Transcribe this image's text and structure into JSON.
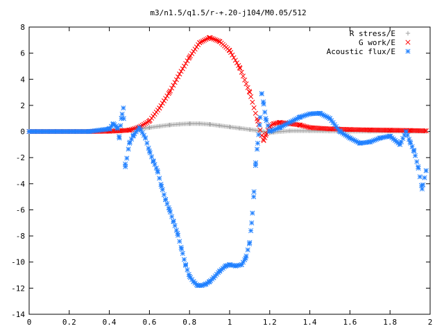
{
  "chart_data": {
    "type": "scatter",
    "title": "m3/n1.5/q1.5/r-+.20-j104/M0.05/512",
    "xlabel": "",
    "ylabel": "",
    "xlim": [
      0,
      2
    ],
    "ylim": [
      -14,
      8
    ],
    "x_ticks": [
      "0",
      "0.2",
      "0.4",
      "0.6",
      "0.8",
      "1",
      "1.2",
      "1.4",
      "1.6",
      "1.8",
      "2"
    ],
    "y_ticks": [
      "8",
      "6",
      "4",
      "2",
      "0",
      "-2",
      "-4",
      "-6",
      "-8",
      "-10",
      "-12",
      "-14"
    ],
    "grid": false,
    "legend_position": "top-right",
    "series": [
      {
        "name": "R stress/E",
        "marker": "plus",
        "color": "#a0a0a0",
        "points": [
          [
            0.0,
            0
          ],
          [
            0.3,
            0
          ],
          [
            0.4,
            0.02
          ],
          [
            0.45,
            0.05
          ],
          [
            0.5,
            0.12
          ],
          [
            0.55,
            0.2
          ],
          [
            0.6,
            0.3
          ],
          [
            0.65,
            0.4
          ],
          [
            0.7,
            0.5
          ],
          [
            0.75,
            0.56
          ],
          [
            0.8,
            0.6
          ],
          [
            0.85,
            0.6
          ],
          [
            0.9,
            0.55
          ],
          [
            0.95,
            0.45
          ],
          [
            1.0,
            0.35
          ],
          [
            1.05,
            0.25
          ],
          [
            1.1,
            0.15
          ],
          [
            1.15,
            0.05
          ],
          [
            1.2,
            -0.1
          ],
          [
            1.22,
            -0.05
          ],
          [
            1.3,
            0.05
          ],
          [
            1.4,
            0.05
          ],
          [
            1.5,
            0.03
          ],
          [
            1.6,
            0.02
          ],
          [
            1.7,
            0.02
          ],
          [
            1.8,
            0.02
          ],
          [
            1.9,
            0.02
          ],
          [
            1.98,
            0.02
          ]
        ]
      },
      {
        "name": "G work/E",
        "marker": "cross",
        "color": "#ff0000",
        "points": [
          [
            0.0,
            0
          ],
          [
            0.3,
            0
          ],
          [
            0.4,
            0.02
          ],
          [
            0.45,
            0.05
          ],
          [
            0.5,
            0.1
          ],
          [
            0.55,
            0.35
          ],
          [
            0.6,
            0.8
          ],
          [
            0.65,
            1.8
          ],
          [
            0.7,
            3.0
          ],
          [
            0.75,
            4.4
          ],
          [
            0.8,
            5.7
          ],
          [
            0.85,
            6.8
          ],
          [
            0.9,
            7.2
          ],
          [
            0.95,
            6.9
          ],
          [
            1.0,
            6.2
          ],
          [
            1.05,
            4.9
          ],
          [
            1.1,
            3.0
          ],
          [
            1.14,
            0.8
          ],
          [
            1.16,
            -0.3
          ],
          [
            1.17,
            -0.7
          ],
          [
            1.18,
            -0.3
          ],
          [
            1.2,
            0.4
          ],
          [
            1.22,
            0.6
          ],
          [
            1.25,
            0.7
          ],
          [
            1.3,
            0.6
          ],
          [
            1.35,
            0.5
          ],
          [
            1.4,
            0.3
          ],
          [
            1.5,
            0.2
          ],
          [
            1.6,
            0.15
          ],
          [
            1.7,
            0.12
          ],
          [
            1.8,
            0.1
          ],
          [
            1.9,
            0.08
          ],
          [
            1.98,
            0.05
          ]
        ]
      },
      {
        "name": "Acoustic flux/E",
        "marker": "star",
        "color": "#2080ff",
        "points": [
          [
            0.0,
            0
          ],
          [
            0.3,
            0
          ],
          [
            0.4,
            0.2
          ],
          [
            0.42,
            0.6
          ],
          [
            0.44,
            0.3
          ],
          [
            0.45,
            -0.5
          ],
          [
            0.46,
            1.0
          ],
          [
            0.47,
            1.8
          ],
          [
            0.48,
            -2.7
          ],
          [
            0.5,
            -0.9
          ],
          [
            0.52,
            -0.3
          ],
          [
            0.55,
            0.3
          ],
          [
            0.58,
            -0.5
          ],
          [
            0.6,
            -1.5
          ],
          [
            0.62,
            -2.3
          ],
          [
            0.64,
            -3.0
          ],
          [
            0.66,
            -4.2
          ],
          [
            0.68,
            -5.2
          ],
          [
            0.7,
            -6.0
          ],
          [
            0.72,
            -6.9
          ],
          [
            0.74,
            -7.8
          ],
          [
            0.76,
            -9.0
          ],
          [
            0.78,
            -10.2
          ],
          [
            0.8,
            -11.1
          ],
          [
            0.82,
            -11.5
          ],
          [
            0.84,
            -11.8
          ],
          [
            0.86,
            -11.8
          ],
          [
            0.88,
            -11.7
          ],
          [
            0.9,
            -11.5
          ],
          [
            0.92,
            -11.2
          ],
          [
            0.95,
            -10.7
          ],
          [
            0.98,
            -10.3
          ],
          [
            1.0,
            -10.2
          ],
          [
            1.03,
            -10.3
          ],
          [
            1.06,
            -10.2
          ],
          [
            1.08,
            -9.7
          ],
          [
            1.1,
            -8.5
          ],
          [
            1.11,
            -7.0
          ],
          [
            1.12,
            -5.0
          ],
          [
            1.13,
            -2.4
          ],
          [
            1.14,
            -0.9
          ],
          [
            1.15,
            0.5
          ],
          [
            1.16,
            2.9
          ],
          [
            1.17,
            2.1
          ],
          [
            1.18,
            1.0
          ],
          [
            1.2,
            0.0
          ],
          [
            1.25,
            0.3
          ],
          [
            1.3,
            0.7
          ],
          [
            1.35,
            1.1
          ],
          [
            1.4,
            1.35
          ],
          [
            1.45,
            1.4
          ],
          [
            1.5,
            1.0
          ],
          [
            1.55,
            0.0
          ],
          [
            1.6,
            -0.5
          ],
          [
            1.65,
            -0.9
          ],
          [
            1.7,
            -0.8
          ],
          [
            1.75,
            -0.5
          ],
          [
            1.8,
            -0.35
          ],
          [
            1.85,
            -1.0
          ],
          [
            1.88,
            0.0
          ],
          [
            1.9,
            -0.8
          ],
          [
            1.92,
            -1.5
          ],
          [
            1.94,
            -2.7
          ],
          [
            1.96,
            -4.4
          ],
          [
            1.98,
            -3.0
          ]
        ]
      }
    ]
  }
}
